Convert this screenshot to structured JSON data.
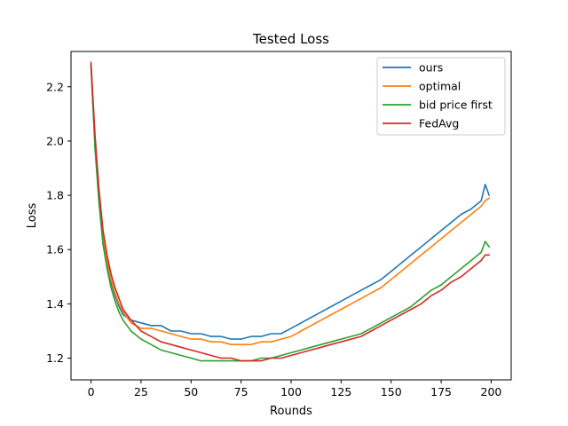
{
  "chart_data": {
    "type": "line",
    "title": "Tested Loss",
    "xlabel": "Rounds",
    "ylabel": "Loss",
    "xlim": [
      -10,
      210
    ],
    "ylim": [
      1.12,
      2.33
    ],
    "xticks": [
      0,
      25,
      50,
      75,
      100,
      125,
      150,
      175,
      200
    ],
    "yticks": [
      1.2,
      1.4,
      1.6,
      1.8,
      2.0,
      2.2
    ],
    "ytick_labels": [
      "1.2",
      "1.4",
      "1.6",
      "1.8",
      "2.0",
      "2.2"
    ],
    "legend_position": "top-right",
    "grid": false,
    "series": [
      {
        "name": "ours",
        "color": "#1f77b4",
        "x": [
          0,
          2,
          4,
          6,
          8,
          10,
          12,
          14,
          16,
          18,
          20,
          25,
          30,
          35,
          40,
          45,
          50,
          55,
          60,
          65,
          70,
          75,
          80,
          85,
          90,
          95,
          100,
          105,
          110,
          115,
          120,
          125,
          130,
          135,
          140,
          145,
          150,
          155,
          160,
          165,
          170,
          175,
          180,
          185,
          190,
          195,
          197,
          199
        ],
        "y": [
          2.28,
          1.98,
          1.78,
          1.62,
          1.54,
          1.48,
          1.43,
          1.39,
          1.36,
          1.35,
          1.34,
          1.33,
          1.32,
          1.32,
          1.3,
          1.3,
          1.29,
          1.29,
          1.28,
          1.28,
          1.27,
          1.27,
          1.28,
          1.28,
          1.29,
          1.29,
          1.31,
          1.33,
          1.35,
          1.37,
          1.39,
          1.41,
          1.43,
          1.45,
          1.47,
          1.49,
          1.52,
          1.55,
          1.58,
          1.61,
          1.64,
          1.67,
          1.7,
          1.73,
          1.75,
          1.78,
          1.84,
          1.8
        ]
      },
      {
        "name": "optimal",
        "color": "#ff7f0e",
        "x": [
          0,
          2,
          4,
          6,
          8,
          10,
          12,
          14,
          16,
          18,
          20,
          25,
          30,
          35,
          40,
          45,
          50,
          55,
          60,
          65,
          70,
          75,
          80,
          85,
          90,
          95,
          100,
          105,
          110,
          115,
          120,
          125,
          130,
          135,
          140,
          145,
          150,
          155,
          160,
          165,
          170,
          175,
          180,
          185,
          190,
          195,
          197,
          199
        ],
        "y": [
          2.28,
          2.0,
          1.8,
          1.65,
          1.56,
          1.49,
          1.44,
          1.4,
          1.37,
          1.35,
          1.33,
          1.31,
          1.31,
          1.3,
          1.29,
          1.28,
          1.27,
          1.27,
          1.26,
          1.26,
          1.25,
          1.25,
          1.25,
          1.26,
          1.26,
          1.27,
          1.28,
          1.3,
          1.32,
          1.34,
          1.36,
          1.38,
          1.4,
          1.42,
          1.44,
          1.46,
          1.49,
          1.52,
          1.55,
          1.58,
          1.61,
          1.64,
          1.67,
          1.7,
          1.73,
          1.76,
          1.78,
          1.79
        ]
      },
      {
        "name": "bid price first",
        "color": "#2ca02c",
        "x": [
          0,
          2,
          4,
          6,
          8,
          10,
          12,
          14,
          16,
          18,
          20,
          25,
          30,
          35,
          40,
          45,
          50,
          55,
          60,
          65,
          70,
          75,
          80,
          85,
          90,
          95,
          100,
          105,
          110,
          115,
          120,
          125,
          130,
          135,
          140,
          145,
          150,
          155,
          160,
          165,
          170,
          175,
          180,
          185,
          190,
          195,
          197,
          199
        ],
        "y": [
          2.28,
          1.97,
          1.77,
          1.62,
          1.53,
          1.46,
          1.41,
          1.37,
          1.34,
          1.32,
          1.3,
          1.27,
          1.25,
          1.23,
          1.22,
          1.21,
          1.2,
          1.19,
          1.19,
          1.19,
          1.19,
          1.19,
          1.19,
          1.2,
          1.2,
          1.21,
          1.22,
          1.23,
          1.24,
          1.25,
          1.26,
          1.27,
          1.28,
          1.29,
          1.31,
          1.33,
          1.35,
          1.37,
          1.39,
          1.42,
          1.45,
          1.47,
          1.5,
          1.53,
          1.56,
          1.59,
          1.63,
          1.61
        ]
      },
      {
        "name": "FedAvg",
        "color": "#d62728",
        "x": [
          0,
          2,
          4,
          6,
          8,
          10,
          12,
          14,
          16,
          18,
          20,
          25,
          30,
          35,
          40,
          45,
          50,
          55,
          60,
          65,
          70,
          75,
          80,
          85,
          90,
          95,
          100,
          105,
          110,
          115,
          120,
          125,
          130,
          135,
          140,
          145,
          150,
          155,
          160,
          165,
          170,
          175,
          180,
          185,
          190,
          195,
          197,
          199
        ],
        "y": [
          2.29,
          2.02,
          1.82,
          1.67,
          1.58,
          1.51,
          1.46,
          1.42,
          1.38,
          1.36,
          1.34,
          1.3,
          1.28,
          1.26,
          1.25,
          1.24,
          1.23,
          1.22,
          1.21,
          1.2,
          1.2,
          1.19,
          1.19,
          1.19,
          1.2,
          1.2,
          1.21,
          1.22,
          1.23,
          1.24,
          1.25,
          1.26,
          1.27,
          1.28,
          1.3,
          1.32,
          1.34,
          1.36,
          1.38,
          1.4,
          1.43,
          1.45,
          1.48,
          1.5,
          1.53,
          1.56,
          1.58,
          1.58
        ]
      }
    ]
  }
}
